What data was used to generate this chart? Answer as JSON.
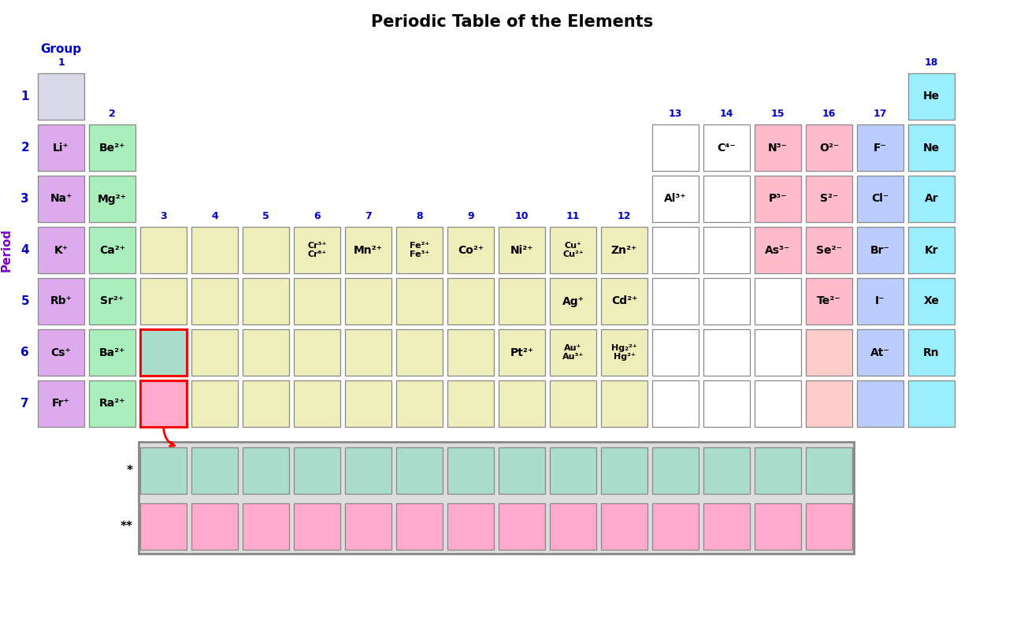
{
  "title": "Periodic Table of the Elements",
  "title_fontsize": 15,
  "label_color": "#0000CC",
  "period_label_color": "#7B00CC",
  "text_color": "#000000",
  "elements": [
    {
      "label": "",
      "period": 1,
      "group": 1,
      "color": "#D8D8E8"
    },
    {
      "label": "He",
      "period": 1,
      "group": 18,
      "color": "#99EEFF"
    },
    {
      "label": "Li⁺",
      "period": 2,
      "group": 1,
      "color": "#DDAAEE"
    },
    {
      "label": "Be²⁺",
      "period": 2,
      "group": 2,
      "color": "#AAEEBB"
    },
    {
      "label": "",
      "period": 2,
      "group": 13,
      "color": "#FFFFFF"
    },
    {
      "label": "C⁴⁻",
      "period": 2,
      "group": 14,
      "color": "#FFFFFF"
    },
    {
      "label": "N³⁻",
      "period": 2,
      "group": 15,
      "color": "#FFBBCC"
    },
    {
      "label": "O²⁻",
      "period": 2,
      "group": 16,
      "color": "#FFBBCC"
    },
    {
      "label": "F⁻",
      "period": 2,
      "group": 17,
      "color": "#BBCCFF"
    },
    {
      "label": "Ne",
      "period": 2,
      "group": 18,
      "color": "#99EEFF"
    },
    {
      "label": "Na⁺",
      "period": 3,
      "group": 1,
      "color": "#DDAAEE"
    },
    {
      "label": "Mg²⁺",
      "period": 3,
      "group": 2,
      "color": "#AAEEBB"
    },
    {
      "label": "Al³⁺",
      "period": 3,
      "group": 13,
      "color": "#FFFFFF"
    },
    {
      "label": "",
      "period": 3,
      "group": 14,
      "color": "#FFFFFF"
    },
    {
      "label": "P³⁻",
      "period": 3,
      "group": 15,
      "color": "#FFBBCC"
    },
    {
      "label": "S²⁻",
      "period": 3,
      "group": 16,
      "color": "#FFBBCC"
    },
    {
      "label": "Cl⁻",
      "period": 3,
      "group": 17,
      "color": "#BBCCFF"
    },
    {
      "label": "Ar",
      "period": 3,
      "group": 18,
      "color": "#99EEFF"
    },
    {
      "label": "K⁺",
      "period": 4,
      "group": 1,
      "color": "#DDAAEE"
    },
    {
      "label": "Ca²⁺",
      "period": 4,
      "group": 2,
      "color": "#AAEEBB"
    },
    {
      "label": "",
      "period": 4,
      "group": 3,
      "color": "#EEEEBB"
    },
    {
      "label": "",
      "period": 4,
      "group": 4,
      "color": "#EEEEBB"
    },
    {
      "label": "",
      "period": 4,
      "group": 5,
      "color": "#EEEEBB"
    },
    {
      "label": "Cr³⁺\nCr⁶⁺",
      "period": 4,
      "group": 6,
      "color": "#EEEEBB"
    },
    {
      "label": "Mn²⁺",
      "period": 4,
      "group": 7,
      "color": "#EEEEBB"
    },
    {
      "label": "Fe²⁺\nFe³⁺",
      "period": 4,
      "group": 8,
      "color": "#EEEEBB"
    },
    {
      "label": "Co²⁺",
      "period": 4,
      "group": 9,
      "color": "#EEEEBB"
    },
    {
      "label": "Ni²⁺",
      "period": 4,
      "group": 10,
      "color": "#EEEEBB"
    },
    {
      "label": "Cu⁺\nCu²⁺",
      "period": 4,
      "group": 11,
      "color": "#EEEEBB"
    },
    {
      "label": "Zn²⁺",
      "period": 4,
      "group": 12,
      "color": "#EEEEBB"
    },
    {
      "label": "",
      "period": 4,
      "group": 13,
      "color": "#FFFFFF"
    },
    {
      "label": "",
      "period": 4,
      "group": 14,
      "color": "#FFFFFF"
    },
    {
      "label": "As³⁻",
      "period": 4,
      "group": 15,
      "color": "#FFBBCC"
    },
    {
      "label": "Se²⁻",
      "period": 4,
      "group": 16,
      "color": "#FFBBCC"
    },
    {
      "label": "Br⁻",
      "period": 4,
      "group": 17,
      "color": "#BBCCFF"
    },
    {
      "label": "Kr",
      "period": 4,
      "group": 18,
      "color": "#99EEFF"
    },
    {
      "label": "Rb⁺",
      "period": 5,
      "group": 1,
      "color": "#DDAAEE"
    },
    {
      "label": "Sr²⁺",
      "period": 5,
      "group": 2,
      "color": "#AAEEBB"
    },
    {
      "label": "",
      "period": 5,
      "group": 3,
      "color": "#EEEEBB"
    },
    {
      "label": "",
      "period": 5,
      "group": 4,
      "color": "#EEEEBB"
    },
    {
      "label": "",
      "period": 5,
      "group": 5,
      "color": "#EEEEBB"
    },
    {
      "label": "",
      "period": 5,
      "group": 6,
      "color": "#EEEEBB"
    },
    {
      "label": "",
      "period": 5,
      "group": 7,
      "color": "#EEEEBB"
    },
    {
      "label": "",
      "period": 5,
      "group": 8,
      "color": "#EEEEBB"
    },
    {
      "label": "",
      "period": 5,
      "group": 9,
      "color": "#EEEEBB"
    },
    {
      "label": "",
      "period": 5,
      "group": 10,
      "color": "#EEEEBB"
    },
    {
      "label": "Ag⁺",
      "period": 5,
      "group": 11,
      "color": "#EEEEBB"
    },
    {
      "label": "Cd²⁺",
      "period": 5,
      "group": 12,
      "color": "#EEEEBB"
    },
    {
      "label": "",
      "period": 5,
      "group": 13,
      "color": "#FFFFFF"
    },
    {
      "label": "",
      "period": 5,
      "group": 14,
      "color": "#FFFFFF"
    },
    {
      "label": "",
      "period": 5,
      "group": 15,
      "color": "#FFFFFF"
    },
    {
      "label": "Te²⁻",
      "period": 5,
      "group": 16,
      "color": "#FFBBCC"
    },
    {
      "label": "I⁻",
      "period": 5,
      "group": 17,
      "color": "#BBCCFF"
    },
    {
      "label": "Xe",
      "period": 5,
      "group": 18,
      "color": "#99EEFF"
    },
    {
      "label": "Cs⁺",
      "period": 6,
      "group": 1,
      "color": "#DDAAEE"
    },
    {
      "label": "Ba²⁺",
      "period": 6,
      "group": 2,
      "color": "#AAEEBB"
    },
    {
      "label": "",
      "period": 6,
      "group": 3,
      "color": "#AADDCC"
    },
    {
      "label": "",
      "period": 6,
      "group": 4,
      "color": "#EEEEBB"
    },
    {
      "label": "",
      "period": 6,
      "group": 5,
      "color": "#EEEEBB"
    },
    {
      "label": "",
      "period": 6,
      "group": 6,
      "color": "#EEEEBB"
    },
    {
      "label": "",
      "period": 6,
      "group": 7,
      "color": "#EEEEBB"
    },
    {
      "label": "",
      "period": 6,
      "group": 8,
      "color": "#EEEEBB"
    },
    {
      "label": "",
      "period": 6,
      "group": 9,
      "color": "#EEEEBB"
    },
    {
      "label": "Pt²⁺",
      "period": 6,
      "group": 10,
      "color": "#EEEEBB"
    },
    {
      "label": "Au⁺\nAu³⁺",
      "period": 6,
      "group": 11,
      "color": "#EEEEBB"
    },
    {
      "label": "Hg₂²⁺\nHg²⁺",
      "period": 6,
      "group": 12,
      "color": "#EEEEBB"
    },
    {
      "label": "",
      "period": 6,
      "group": 13,
      "color": "#FFFFFF"
    },
    {
      "label": "",
      "period": 6,
      "group": 14,
      "color": "#FFFFFF"
    },
    {
      "label": "",
      "period": 6,
      "group": 15,
      "color": "#FFFFFF"
    },
    {
      "label": "",
      "period": 6,
      "group": 16,
      "color": "#FFCCCC"
    },
    {
      "label": "At⁻",
      "period": 6,
      "group": 17,
      "color": "#BBCCFF"
    },
    {
      "label": "Rn",
      "period": 6,
      "group": 18,
      "color": "#99EEFF"
    },
    {
      "label": "Fr⁺",
      "period": 7,
      "group": 1,
      "color": "#DDAAEE"
    },
    {
      "label": "Ra²⁺",
      "period": 7,
      "group": 2,
      "color": "#AAEEBB"
    },
    {
      "label": "",
      "period": 7,
      "group": 3,
      "color": "#FFAACC"
    },
    {
      "label": "",
      "period": 7,
      "group": 4,
      "color": "#EEEEBB"
    },
    {
      "label": "",
      "period": 7,
      "group": 5,
      "color": "#EEEEBB"
    },
    {
      "label": "",
      "period": 7,
      "group": 6,
      "color": "#EEEEBB"
    },
    {
      "label": "",
      "period": 7,
      "group": 7,
      "color": "#EEEEBB"
    },
    {
      "label": "",
      "period": 7,
      "group": 8,
      "color": "#EEEEBB"
    },
    {
      "label": "",
      "period": 7,
      "group": 9,
      "color": "#EEEEBB"
    },
    {
      "label": "",
      "period": 7,
      "group": 10,
      "color": "#EEEEBB"
    },
    {
      "label": "",
      "period": 7,
      "group": 11,
      "color": "#EEEEBB"
    },
    {
      "label": "",
      "period": 7,
      "group": 12,
      "color": "#EEEEBB"
    },
    {
      "label": "",
      "period": 7,
      "group": 13,
      "color": "#FFFFFF"
    },
    {
      "label": "",
      "period": 7,
      "group": 14,
      "color": "#FFFFFF"
    },
    {
      "label": "",
      "period": 7,
      "group": 15,
      "color": "#FFFFFF"
    },
    {
      "label": "",
      "period": 7,
      "group": 16,
      "color": "#FFCCCC"
    },
    {
      "label": "",
      "period": 7,
      "group": 17,
      "color": "#BBCCFF"
    },
    {
      "label": "",
      "period": 7,
      "group": 18,
      "color": "#99EEFF"
    }
  ],
  "lanthanide_color": "#AADDCC",
  "actinide_color": "#FFAACC",
  "lanthanide_count": 14,
  "actinide_count": 14
}
